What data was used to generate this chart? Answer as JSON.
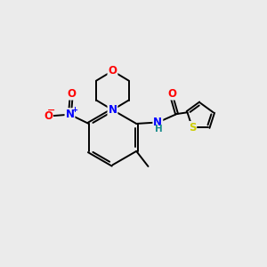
{
  "background_color": "#ebebeb",
  "bond_color": "#000000",
  "atom_colors": {
    "O": "#ff0000",
    "N": "#0000ff",
    "S": "#cccc00",
    "C": "#000000",
    "H": "#1a8c8c"
  },
  "figsize": [
    3.0,
    3.0
  ],
  "dpi": 100
}
